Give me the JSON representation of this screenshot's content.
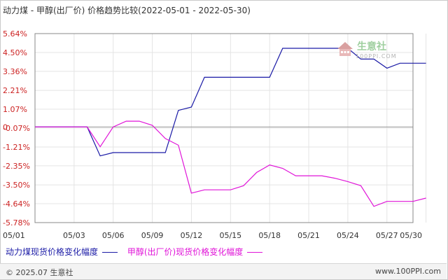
{
  "title": "动力煤 - 甲醇(出厂价) 价格趋势比较(2022-05-01 - 2022-05-30)",
  "footer": {
    "copyright": "© 2025.07 生意社",
    "url": "www.100PPI.com"
  },
  "watermark": {
    "brand": "生意社",
    "url": "100PPI.COM"
  },
  "colors": {
    "series1": "#1a1aa6",
    "series2": "#e014d8",
    "grid": "#e4e4e4",
    "axis": "#888888",
    "tick_label": "#333333",
    "y_tick_label": "#cc2222"
  },
  "chart_data": {
    "type": "line",
    "xlim": [
      1,
      30
    ],
    "ylim": [
      -5.78,
      5.64
    ],
    "x_ticks": [
      1,
      4,
      7,
      10,
      13,
      16,
      19,
      22,
      25,
      28,
      31
    ],
    "x_tick_labels": [
      "05/01",
      "05/03",
      "05/06",
      "05/09",
      "05/12",
      "05/15",
      "05/18",
      "05/21",
      "05/24",
      "05/27",
      "05/30"
    ],
    "y_ticks": [
      5.64,
      4.5,
      3.36,
      2.21,
      1.07,
      -0.07,
      -1.21,
      -2.35,
      -3.5,
      -4.64,
      -5.78
    ],
    "y_tick_labels": [
      "5.64%",
      "4.50%",
      "3.36%",
      "2.21%",
      "1.07%",
      "-0.07%",
      "-1.21%",
      "-2.35%",
      "-3.50%",
      "-4.64%",
      "-5.78%"
    ],
    "y_zero_label": "0",
    "grid": true,
    "legend_position": "bottom-left",
    "series": [
      {
        "name": "动力煤现货价格变化幅度",
        "color": "#1a1aa6",
        "points": [
          [
            1,
            0
          ],
          [
            2,
            0
          ],
          [
            3,
            0
          ],
          [
            4,
            0
          ],
          [
            5,
            0
          ],
          [
            6,
            -1.75
          ],
          [
            7,
            -1.55
          ],
          [
            8,
            -1.55
          ],
          [
            9,
            -1.55
          ],
          [
            10,
            -1.55
          ],
          [
            11,
            -1.55
          ],
          [
            12,
            1.0
          ],
          [
            13,
            1.2
          ],
          [
            14,
            3.0
          ],
          [
            15,
            3.0
          ],
          [
            16,
            3.0
          ],
          [
            17,
            3.0
          ],
          [
            18,
            3.0
          ],
          [
            19,
            3.0
          ],
          [
            20,
            4.75
          ],
          [
            21,
            4.75
          ],
          [
            22,
            4.75
          ],
          [
            23,
            4.75
          ],
          [
            24,
            4.75
          ],
          [
            25,
            4.75
          ],
          [
            26,
            4.1
          ],
          [
            27,
            4.1
          ],
          [
            28,
            3.55
          ],
          [
            29,
            3.85
          ],
          [
            30,
            3.85
          ],
          [
            31,
            3.85
          ]
        ]
      },
      {
        "name": "甲醇(出厂价)现货价格变化幅度",
        "color": "#e014d8",
        "points": [
          [
            1,
            0
          ],
          [
            2,
            0
          ],
          [
            3,
            0
          ],
          [
            4,
            0
          ],
          [
            5,
            0
          ],
          [
            6,
            -1.2
          ],
          [
            7,
            0
          ],
          [
            8,
            0.35
          ],
          [
            9,
            0.35
          ],
          [
            10,
            0.1
          ],
          [
            11,
            -0.7
          ],
          [
            12,
            -1.1
          ],
          [
            13,
            -4.0
          ],
          [
            14,
            -3.8
          ],
          [
            15,
            -3.8
          ],
          [
            16,
            -3.8
          ],
          [
            17,
            -3.55
          ],
          [
            18,
            -2.75
          ],
          [
            19,
            -2.3
          ],
          [
            20,
            -2.5
          ],
          [
            21,
            -2.95
          ],
          [
            22,
            -2.95
          ],
          [
            23,
            -2.95
          ],
          [
            24,
            -3.1
          ],
          [
            25,
            -3.3
          ],
          [
            26,
            -3.55
          ],
          [
            27,
            -4.8
          ],
          [
            28,
            -4.5
          ],
          [
            29,
            -4.5
          ],
          [
            30,
            -4.5
          ],
          [
            31,
            -4.3
          ]
        ]
      }
    ]
  }
}
